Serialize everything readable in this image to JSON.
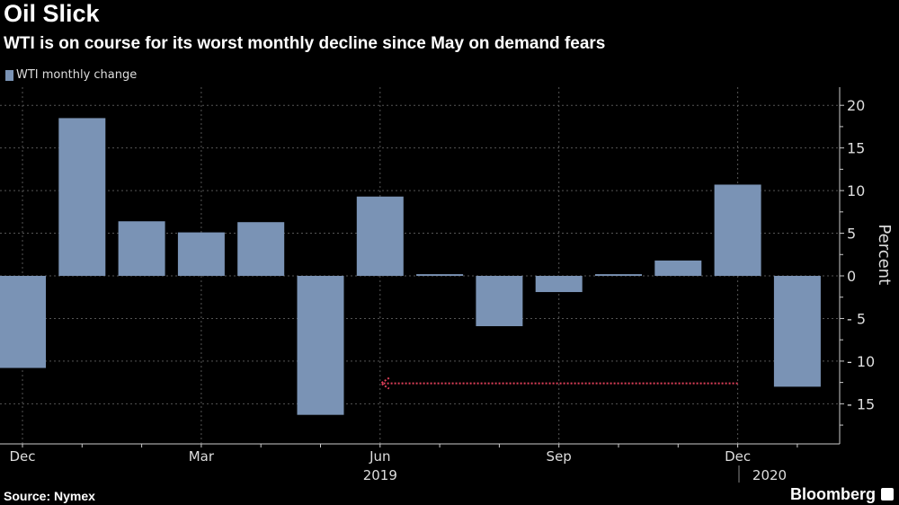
{
  "header": {
    "title": "Oil Slick",
    "subtitle": "WTI is on course for its worst monthly decline since May on demand fears"
  },
  "footer": {
    "source": "Source: Nymex",
    "brand": "Bloomberg"
  },
  "chart_data": {
    "type": "bar",
    "title": "Oil Slick",
    "subtitle": "WTI is on course for its worst monthly decline since May on demand fears",
    "legend": {
      "entries": [
        "WTI monthly change"
      ],
      "placement": "top-left"
    },
    "ylabel": "Percent",
    "xlabel": "",
    "ylim": [
      -19.7,
      22
    ],
    "yticks": [
      20,
      15,
      10,
      5,
      0,
      -5,
      -10,
      -15
    ],
    "grid": true,
    "categories": [
      "Dec 2018",
      "Jan 2019",
      "Feb 2019",
      "Mar 2019",
      "Apr 2019",
      "May 2019",
      "Jun 2019",
      "Jul 2019",
      "Aug 2019",
      "Sep 2019",
      "Oct 2019",
      "Nov 2019",
      "Dec 2019",
      "Jan 2020"
    ],
    "series": [
      {
        "name": "WTI monthly change",
        "color": "#7a93b5",
        "values": [
          -10.8,
          18.5,
          6.4,
          5.1,
          6.3,
          -16.3,
          9.3,
          0.2,
          -5.9,
          -1.9,
          0.2,
          1.8,
          10.7,
          -13.0
        ]
      }
    ],
    "xtick_labels": [
      {
        "index": 0,
        "label": "Dec"
      },
      {
        "index": 3,
        "label": "Mar"
      },
      {
        "index": 6,
        "label": "Jun",
        "year": "2019"
      },
      {
        "index": 9,
        "label": "Sep"
      },
      {
        "index": 12,
        "label": "Dec"
      },
      {
        "index": 13,
        "label": "",
        "year": "2020"
      }
    ],
    "annotation": {
      "type": "arrow",
      "from_index": 12,
      "to_index": 6,
      "y": -12.6,
      "color": "#e0405a"
    }
  }
}
